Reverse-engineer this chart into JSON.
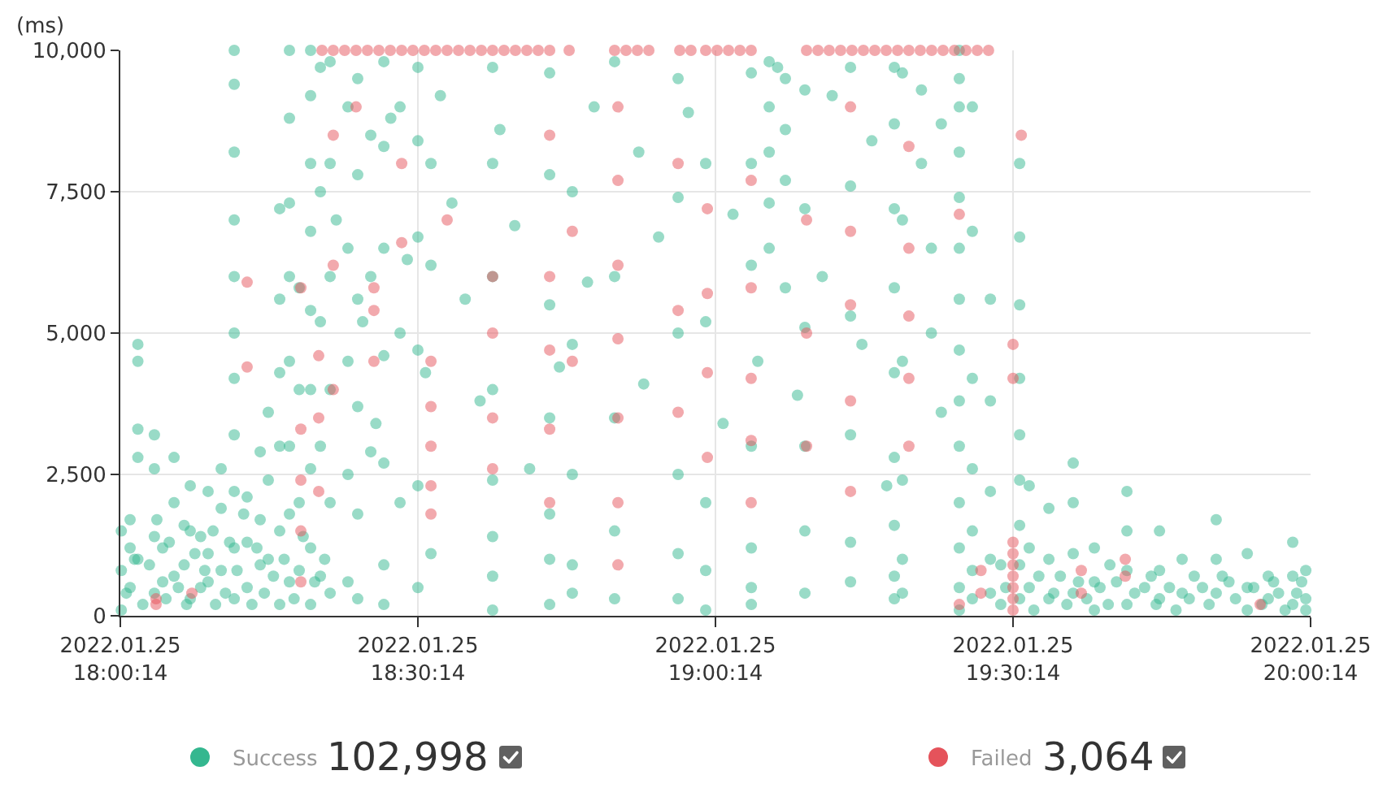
{
  "chart_data": {
    "type": "scatter",
    "ylabel": "(ms)",
    "annotations": [
      "102,998",
      "3,064"
    ],
    "xlim": [
      "2022-01-25T18:00:14",
      "2022-01-25T20:00:14"
    ],
    "xticks": [
      {
        "value": "2022-01-25T18:00:14",
        "label": "2022.01.25\n18:00:14"
      },
      {
        "value": "2022-01-25T18:30:14",
        "label": "2022.01.25\n18:30:14"
      },
      {
        "value": "2022-01-25T19:00:14",
        "label": "2022.01.25\n19:00:14"
      },
      {
        "value": "2022-01-25T19:30:14",
        "label": "2022.01.25\n19:30:14"
      },
      {
        "value": "2022-01-25T20:00:14",
        "label": "2022.01.25\n20:00:14"
      }
    ],
    "ylim": [
      0,
      10000
    ],
    "yticks": [
      0,
      {
        "value": 2500,
        "label": "2,500"
      },
      {
        "value": 5000,
        "label": "5,000"
      },
      {
        "value": 7500,
        "label": "7,500"
      },
      {
        "value": 10000,
        "label": "10,000"
      }
    ],
    "grid": true,
    "legend": "bottom",
    "marker": "circle",
    "series": [
      {
        "name": "Success",
        "color": "#34b78f",
        "x": [
          "2022-01-25T18:00:20",
          "2022-01-25T18:00:20",
          "2022-01-25T18:00:20",
          "2022-01-25T18:01:13",
          "2022-01-25T18:01:13",
          "2022-01-25T18:01:13",
          "2022-01-25T18:02:00",
          "2022-01-25T18:02:00",
          "2022-01-25T18:02:00",
          "2022-01-25T18:02:00",
          "2022-01-25T18:02:00",
          "2022-01-25T18:03:40",
          "2022-01-25T18:03:40",
          "2022-01-25T18:03:40",
          "2022-01-25T18:03:40",
          "2022-01-25T18:04:30",
          "2022-01-25T18:04:30",
          "2022-01-25T18:05:39",
          "2022-01-25T18:05:39",
          "2022-01-25T18:05:39",
          "2022-01-25T18:06:40",
          "2022-01-25T18:06:40",
          "2022-01-25T18:07:17",
          "2022-01-25T18:07:17",
          "2022-01-25T18:07:17",
          "2022-01-25T18:08:20",
          "2022-01-25T18:08:20",
          "2022-01-25T18:09:05",
          "2022-01-25T18:09:05",
          "2022-01-25T18:09:05",
          "2022-01-25T18:10:24",
          "2022-01-25T18:10:24",
          "2022-01-25T18:10:24",
          "2022-01-25T18:11:43",
          "2022-01-25T18:11:43",
          "2022-01-25T18:11:43",
          "2022-01-25T18:11:43",
          "2022-01-25T18:11:43",
          "2022-01-25T18:11:43",
          "2022-01-25T18:11:43",
          "2022-01-25T18:11:43",
          "2022-01-25T18:11:43",
          "2022-01-25T18:11:43",
          "2022-01-25T18:11:43",
          "2022-01-25T18:13:01",
          "2022-01-25T18:13:01",
          "2022-01-25T18:13:01",
          "2022-01-25T18:14:20",
          "2022-01-25T18:14:20",
          "2022-01-25T18:14:20",
          "2022-01-25T18:15:09",
          "2022-01-25T18:15:09",
          "2022-01-25T18:15:09",
          "2022-01-25T18:16:18",
          "2022-01-25T18:16:18",
          "2022-01-25T18:16:18",
          "2022-01-25T18:16:18",
          "2022-01-25T18:16:18",
          "2022-01-25T18:16:18",
          "2022-01-25T18:17:17",
          "2022-01-25T18:17:17",
          "2022-01-25T18:17:17",
          "2022-01-25T18:17:17",
          "2022-01-25T18:17:17",
          "2022-01-25T18:17:17",
          "2022-01-25T18:17:17",
          "2022-01-25T18:17:17",
          "2022-01-25T18:18:16",
          "2022-01-25T18:18:16",
          "2022-01-25T18:18:16",
          "2022-01-25T18:18:16",
          "2022-01-25T18:19:25",
          "2022-01-25T18:19:25",
          "2022-01-25T18:19:25",
          "2022-01-25T18:19:25",
          "2022-01-25T18:19:25",
          "2022-01-25T18:19:25",
          "2022-01-25T18:19:25",
          "2022-01-25T18:19:25",
          "2022-01-25T18:19:25",
          "2022-01-25T18:20:24",
          "2022-01-25T18:20:24",
          "2022-01-25T18:20:24",
          "2022-01-25T18:20:24",
          "2022-01-25T18:20:24",
          "2022-01-25T18:21:23",
          "2022-01-25T18:21:23",
          "2022-01-25T18:21:23",
          "2022-01-25T18:21:23",
          "2022-01-25T18:21:23",
          "2022-01-25T18:21:23",
          "2022-01-25T18:22:00",
          "2022-01-25T18:23:11",
          "2022-01-25T18:23:11",
          "2022-01-25T18:23:11",
          "2022-01-25T18:23:11",
          "2022-01-25T18:23:11",
          "2022-01-25T18:24:10",
          "2022-01-25T18:24:10",
          "2022-01-25T18:24:10",
          "2022-01-25T18:24:10",
          "2022-01-25T18:24:10",
          "2022-01-25T18:24:10",
          "2022-01-25T18:24:40",
          "2022-01-25T18:25:29",
          "2022-01-25T18:25:29",
          "2022-01-25T18:25:29",
          "2022-01-25T18:26:00",
          "2022-01-25T18:26:48",
          "2022-01-25T18:26:48",
          "2022-01-25T18:26:48",
          "2022-01-25T18:26:48",
          "2022-01-25T18:26:48",
          "2022-01-25T18:26:48",
          "2022-01-25T18:26:48",
          "2022-01-25T18:27:30",
          "2022-01-25T18:28:26",
          "2022-01-25T18:28:26",
          "2022-01-25T18:28:26",
          "2022-01-25T18:29:10",
          "2022-01-25T18:30:14",
          "2022-01-25T18:30:14",
          "2022-01-25T18:30:14",
          "2022-01-25T18:30:14",
          "2022-01-25T18:30:14",
          "2022-01-25T18:30:14",
          "2022-01-25T18:31:00",
          "2022-01-25T18:31:33",
          "2022-01-25T18:31:33",
          "2022-01-25T18:31:33",
          "2022-01-25T18:32:30",
          "2022-01-25T18:33:40",
          "2022-01-25T18:35:00",
          "2022-01-25T18:36:30",
          "2022-01-25T18:37:46",
          "2022-01-25T18:37:46",
          "2022-01-25T18:37:46",
          "2022-01-25T18:37:46",
          "2022-01-25T18:37:46",
          "2022-01-25T18:37:46",
          "2022-01-25T18:37:46",
          "2022-01-25T18:37:46",
          "2022-01-25T18:38:30",
          "2022-01-25T18:40:00",
          "2022-01-25T18:41:30",
          "2022-01-25T18:43:31",
          "2022-01-25T18:43:31",
          "2022-01-25T18:43:31",
          "2022-01-25T18:43:31",
          "2022-01-25T18:43:31",
          "2022-01-25T18:43:31",
          "2022-01-25T18:43:31",
          "2022-01-25T18:44:30",
          "2022-01-25T18:45:48",
          "2022-01-25T18:45:48",
          "2022-01-25T18:45:48",
          "2022-01-25T18:45:48",
          "2022-01-25T18:45:48",
          "2022-01-25T18:47:20",
          "2022-01-25T18:48:00",
          "2022-01-25T18:50:04",
          "2022-01-25T18:50:04",
          "2022-01-25T18:50:04",
          "2022-01-25T18:50:04",
          "2022-01-25T18:50:04",
          "2022-01-25T18:52:30",
          "2022-01-25T18:53:00",
          "2022-01-25T18:54:30",
          "2022-01-25T18:56:28",
          "2022-01-25T18:56:28",
          "2022-01-25T18:56:28",
          "2022-01-25T18:56:28",
          "2022-01-25T18:56:28",
          "2022-01-25T18:56:28",
          "2022-01-25T18:57:30",
          "2022-01-25T18:59:15",
          "2022-01-25T18:59:15",
          "2022-01-25T18:59:15",
          "2022-01-25T18:59:15",
          "2022-01-25T18:59:15",
          "2022-01-25T19:01:00",
          "2022-01-25T19:02:00",
          "2022-01-25T19:03:51",
          "2022-01-25T19:03:51",
          "2022-01-25T19:03:51",
          "2022-01-25T19:03:51",
          "2022-01-25T19:03:51",
          "2022-01-25T19:03:51",
          "2022-01-25T19:03:51",
          "2022-01-25T19:04:30",
          "2022-01-25T19:05:39",
          "2022-01-25T19:05:39",
          "2022-01-25T19:05:39",
          "2022-01-25T19:05:39",
          "2022-01-25T19:05:39",
          "2022-01-25T19:06:30",
          "2022-01-25T19:07:17",
          "2022-01-25T19:07:17",
          "2022-01-25T19:07:17",
          "2022-01-25T19:07:17",
          "2022-01-25T19:08:30",
          "2022-01-25T19:09:15",
          "2022-01-25T19:09:15",
          "2022-01-25T19:09:15",
          "2022-01-25T19:09:15",
          "2022-01-25T19:09:15",
          "2022-01-25T19:09:15",
          "2022-01-25T19:11:00",
          "2022-01-25T19:12:00",
          "2022-01-25T19:13:51",
          "2022-01-25T19:13:51",
          "2022-01-25T19:13:51",
          "2022-01-25T19:13:51",
          "2022-01-25T19:13:51",
          "2022-01-25T19:13:51",
          "2022-01-25T19:15:00",
          "2022-01-25T19:16:00",
          "2022-01-25T19:17:30",
          "2022-01-25T19:18:16",
          "2022-01-25T19:18:16",
          "2022-01-25T19:18:16",
          "2022-01-25T19:18:16",
          "2022-01-25T19:18:16",
          "2022-01-25T19:18:16",
          "2022-01-25T19:18:16",
          "2022-01-25T19:18:16",
          "2022-01-25T19:18:16",
          "2022-01-25T19:19:05",
          "2022-01-25T19:19:05",
          "2022-01-25T19:19:05",
          "2022-01-25T19:19:05",
          "2022-01-25T19:19:05",
          "2022-01-25T19:19:05",
          "2022-01-25T19:21:00",
          "2022-01-25T19:21:00",
          "2022-01-25T19:22:00",
          "2022-01-25T19:22:00",
          "2022-01-25T19:23:00",
          "2022-01-25T19:23:00",
          "2022-01-25T19:24:49",
          "2022-01-25T19:24:49",
          "2022-01-25T19:24:49",
          "2022-01-25T19:24:49",
          "2022-01-25T19:24:49",
          "2022-01-25T19:24:49",
          "2022-01-25T19:24:49",
          "2022-01-25T19:24:49",
          "2022-01-25T19:24:49",
          "2022-01-25T19:24:49",
          "2022-01-25T19:24:49",
          "2022-01-25T19:24:49",
          "2022-01-25T19:24:49",
          "2022-01-25T19:24:49",
          "2022-01-25T19:26:08",
          "2022-01-25T19:26:08",
          "2022-01-25T19:26:08",
          "2022-01-25T19:26:08",
          "2022-01-25T19:26:08",
          "2022-01-25T19:26:08",
          "2022-01-25T19:26:08",
          "2022-01-25T19:27:57",
          "2022-01-25T19:27:57",
          "2022-01-25T19:27:57",
          "2022-01-25T19:27:57",
          "2022-01-25T19:27:57",
          "2022-01-25T19:29:00",
          "2022-01-25T19:29:00",
          "2022-01-25T19:30:54",
          "2022-01-25T19:30:54",
          "2022-01-25T19:30:54",
          "2022-01-25T19:30:54",
          "2022-01-25T19:30:54",
          "2022-01-25T19:30:54",
          "2022-01-25T19:30:54",
          "2022-01-25T19:30:54",
          "2022-01-25T19:30:54",
          "2022-01-25T19:31:52",
          "2022-01-25T19:31:52",
          "2022-01-25T19:31:52",
          "2022-01-25T19:33:51",
          "2022-01-25T19:33:51",
          "2022-01-25T19:33:51",
          "2022-01-25T19:35:00",
          "2022-01-25T19:36:18",
          "2022-01-25T19:36:18",
          "2022-01-25T19:36:18",
          "2022-01-25T19:36:18",
          "2022-01-25T19:38:26",
          "2022-01-25T19:38:26",
          "2022-01-25T19:38:26",
          "2022-01-25T19:40:00",
          "2022-01-25T19:41:43",
          "2022-01-25T19:41:43",
          "2022-01-25T19:41:43",
          "2022-01-25T19:41:43",
          "2022-01-25T19:43:30",
          "2022-01-25T19:45:00",
          "2022-01-25T19:45:00",
          "2022-01-25T19:45:00",
          "2022-01-25T19:47:17",
          "2022-01-25T19:47:17",
          "2022-01-25T19:48:30",
          "2022-01-25T19:50:43",
          "2022-01-25T19:50:43",
          "2022-01-25T19:50:43",
          "2022-01-25T19:52:00",
          "2022-01-25T19:53:51",
          "2022-01-25T19:53:51",
          "2022-01-25T19:53:51",
          "2022-01-25T19:55:58",
          "2022-01-25T19:55:58",
          "2022-01-25T19:57:00",
          "2022-01-25T19:58:26",
          "2022-01-25T19:58:26",
          "2022-01-25T19:58:26",
          "2022-01-25T19:59:45",
          "2022-01-25T19:59:45",
          "2022-01-25T19:59:45",
          "2022-01-25T18:00:50",
          "2022-01-25T18:01:40",
          "2022-01-25T18:02:30",
          "2022-01-25T18:03:10",
          "2022-01-25T18:03:55",
          "2022-01-25T18:04:50",
          "2022-01-25T18:05:10",
          "2022-01-25T18:06:05",
          "2022-01-25T18:06:55",
          "2022-01-25T18:07:45",
          "2022-01-25T18:08:45",
          "2022-01-25T18:09:35",
          "2022-01-25T18:09:50",
          "2022-01-25T18:10:50",
          "2022-01-25T18:11:15",
          "2022-01-25T18:12:00",
          "2022-01-25T18:12:40",
          "2022-01-25T18:13:30",
          "2022-01-25T18:14:00",
          "2022-01-25T18:14:45",
          "2022-01-25T18:15:40",
          "2022-01-25T18:16:45",
          "2022-01-25T18:17:45",
          "2022-01-25T18:18:40",
          "2022-01-25T18:19:50",
          "2022-01-25T18:20:50",
          "2022-01-25T19:29:30",
          "2022-01-25T19:32:20",
          "2022-01-25T19:32:50",
          "2022-01-25T19:34:20",
          "2022-01-25T19:35:40",
          "2022-01-25T19:36:50",
          "2022-01-25T19:37:40",
          "2022-01-25T19:39:00",
          "2022-01-25T19:39:50",
          "2022-01-25T19:40:40",
          "2022-01-25T19:42:30",
          "2022-01-25T19:44:10",
          "2022-01-25T19:44:40",
          "2022-01-25T19:46:00",
          "2022-01-25T19:46:40",
          "2022-01-25T19:48:00",
          "2022-01-25T19:49:20",
          "2022-01-25T19:50:00",
          "2022-01-25T19:51:20",
          "2022-01-25T19:52:40",
          "2022-01-25T19:54:30",
          "2022-01-25T19:55:20",
          "2022-01-25T19:56:30",
          "2022-01-25T19:57:40",
          "2022-01-25T19:58:50",
          "2022-01-25T19:59:20"
        ],
        "values": [
          100,
          800,
          1500,
          500,
          1200,
          1700,
          4800,
          4500,
          3300,
          2800,
          1000,
          3200,
          2600,
          1400,
          400,
          1200,
          600,
          2800,
          2000,
          700,
          900,
          1600,
          2300,
          1500,
          300,
          1400,
          500,
          2200,
          1100,
          600,
          2600,
          1900,
          800,
          10000,
          9400,
          8200,
          7000,
          6000,
          5000,
          4200,
          3200,
          2200,
          1200,
          300,
          2100,
          1300,
          500,
          2900,
          1700,
          900,
          3600,
          2400,
          1000,
          7200,
          5600,
          4300,
          3000,
          1500,
          200,
          10000,
          8800,
          7300,
          6000,
          4500,
          3000,
          1800,
          600,
          5800,
          4000,
          2000,
          800,
          10000,
          9200,
          8000,
          6800,
          5400,
          4000,
          2600,
          1200,
          200,
          9700,
          7500,
          5200,
          3000,
          700,
          9800,
          8000,
          6000,
          4000,
          2000,
          400,
          7000,
          9000,
          6500,
          4500,
          2500,
          600,
          9500,
          7800,
          5600,
          3700,
          1800,
          300,
          5200,
          8500,
          6000,
          2900,
          3400,
          9800,
          8300,
          6500,
          4600,
          2700,
          900,
          200,
          8800,
          9000,
          5000,
          2000,
          6300,
          9700,
          8400,
          6700,
          4700,
          2300,
          500,
          4300,
          8000,
          6200,
          1100,
          9200,
          7300,
          5600,
          3800,
          9700,
          8000,
          6000,
          4000,
          2400,
          1400,
          700,
          100,
          8600,
          6900,
          2600,
          9600,
          7800,
          5500,
          3500,
          1800,
          1000,
          200,
          4400,
          7500,
          4800,
          2500,
          900,
          400,
          5900,
          9000,
          9800,
          6000,
          3500,
          1500,
          300,
          8200,
          4100,
          6700,
          9500,
          7400,
          5000,
          2500,
          1100,
          300,
          8900,
          8000,
          5200,
          2000,
          800,
          100,
          3400,
          7100,
          9600,
          8000,
          6200,
          3000,
          1200,
          500,
          200,
          4500,
          9800,
          9000,
          8200,
          7300,
          6500,
          9700,
          9500,
          8600,
          7700,
          5800,
          3900,
          9300,
          7200,
          5100,
          3000,
          1500,
          400,
          6000,
          9200,
          9700,
          7600,
          5300,
          3200,
          1300,
          600,
          4800,
          8400,
          2300,
          9700,
          8700,
          7200,
          5800,
          4300,
          2800,
          1600,
          700,
          300,
          9600,
          7000,
          4500,
          2400,
          1000,
          400,
          9300,
          8000,
          6500,
          5000,
          8700,
          3600,
          10000,
          9500,
          9000,
          8200,
          7400,
          6500,
          5600,
          4700,
          3800,
          3000,
          2000,
          1200,
          500,
          100,
          9000,
          6800,
          4200,
          2600,
          1500,
          800,
          300,
          5600,
          3800,
          2200,
          1000,
          400,
          200,
          900,
          8000,
          6700,
          5500,
          4200,
          3200,
          2400,
          1600,
          900,
          300,
          2300,
          1200,
          500,
          1900,
          1000,
          300,
          700,
          2700,
          2000,
          1100,
          400,
          1200,
          600,
          100,
          900,
          2200,
          1500,
          800,
          200,
          500,
          1500,
          800,
          300,
          1000,
          400,
          700,
          1700,
          1000,
          400,
          600,
          1100,
          500,
          100,
          700,
          300,
          400,
          1300,
          700,
          200,
          800,
          300,
          100,
          400,
          1000,
          200,
          900,
          1700,
          300,
          1300,
          500,
          200,
          1100,
          800,
          1500,
          200,
          400,
          1300,
          800,
          1800,
          200,
          1200,
          400,
          700,
          1000,
          300,
          1400,
          600,
          1000,
          500,
          100,
          700,
          400,
          200,
          600,
          300,
          500,
          200,
          600,
          400,
          700,
          200,
          500,
          100,
          300,
          500,
          200,
          700,
          300,
          500,
          200,
          600,
          100,
          400,
          600
        ]
      },
      {
        "name": "Failed",
        "color": "#e5535b",
        "x": [
          "2022-01-25T18:20:34",
          "2022-01-25T18:21:42",
          "2022-01-25T18:22:51",
          "2022-01-25T18:24:00",
          "2022-01-25T18:25:09",
          "2022-01-25T18:26:18",
          "2022-01-25T18:27:27",
          "2022-01-25T18:28:36",
          "2022-01-25T18:29:44",
          "2022-01-25T18:30:53",
          "2022-01-25T18:32:02",
          "2022-01-25T18:33:11",
          "2022-01-25T18:34:20",
          "2022-01-25T18:35:29",
          "2022-01-25T18:36:38",
          "2022-01-25T18:37:46",
          "2022-01-25T18:38:55",
          "2022-01-25T18:40:04",
          "2022-01-25T18:41:13",
          "2022-01-25T18:42:22",
          "2022-01-25T18:43:31",
          "2022-01-25T18:45:29",
          "2022-01-25T18:50:04",
          "2022-01-25T18:51:13",
          "2022-01-25T18:52:22",
          "2022-01-25T18:53:31",
          "2022-01-25T18:56:38",
          "2022-01-25T18:57:46",
          "2022-01-25T18:59:15",
          "2022-01-25T19:00:24",
          "2022-01-25T19:01:33",
          "2022-01-25T19:02:42",
          "2022-01-25T19:03:50",
          "2022-01-25T19:09:25",
          "2022-01-25T19:10:34",
          "2022-01-25T19:11:42",
          "2022-01-25T19:12:51",
          "2022-01-25T19:14:00",
          "2022-01-25T19:15:09",
          "2022-01-25T19:16:18",
          "2022-01-25T19:17:27",
          "2022-01-25T19:18:36",
          "2022-01-25T19:19:44",
          "2022-01-25T19:20:53",
          "2022-01-25T19:22:02",
          "2022-01-25T19:23:11",
          "2022-01-25T19:24:20",
          "2022-01-25T19:25:29",
          "2022-01-25T19:26:38",
          "2022-01-25T19:27:46",
          "2022-01-25T18:03:50",
          "2022-01-25T18:03:50",
          "2022-01-25T18:07:27",
          "2022-01-25T18:13:01",
          "2022-01-25T18:13:01",
          "2022-01-25T18:18:26",
          "2022-01-25T18:18:26",
          "2022-01-25T18:18:26",
          "2022-01-25T18:18:26",
          "2022-01-25T18:18:26",
          "2022-01-25T18:20:14",
          "2022-01-25T18:20:14",
          "2022-01-25T18:20:14",
          "2022-01-25T18:21:42",
          "2022-01-25T18:21:42",
          "2022-01-25T18:21:42",
          "2022-01-25T18:24:00",
          "2022-01-25T18:25:48",
          "2022-01-25T18:25:48",
          "2022-01-25T18:25:48",
          "2022-01-25T18:28:36",
          "2022-01-25T18:28:36",
          "2022-01-25T18:31:33",
          "2022-01-25T18:31:33",
          "2022-01-25T18:31:33",
          "2022-01-25T18:31:33",
          "2022-01-25T18:31:33",
          "2022-01-25T18:33:11",
          "2022-01-25T18:37:46",
          "2022-01-25T18:37:46",
          "2022-01-25T18:37:46",
          "2022-01-25T18:37:46",
          "2022-01-25T18:43:31",
          "2022-01-25T18:43:31",
          "2022-01-25T18:43:31",
          "2022-01-25T18:43:31",
          "2022-01-25T18:43:31",
          "2022-01-25T18:45:48",
          "2022-01-25T18:45:48",
          "2022-01-25T18:50:24",
          "2022-01-25T18:50:24",
          "2022-01-25T18:50:24",
          "2022-01-25T18:50:24",
          "2022-01-25T18:50:24",
          "2022-01-25T18:50:24",
          "2022-01-25T18:50:24",
          "2022-01-25T18:56:28",
          "2022-01-25T18:56:28",
          "2022-01-25T18:56:28",
          "2022-01-25T18:59:25",
          "2022-01-25T18:59:25",
          "2022-01-25T18:59:25",
          "2022-01-25T18:59:25",
          "2022-01-25T19:03:50",
          "2022-01-25T19:03:50",
          "2022-01-25T19:03:50",
          "2022-01-25T19:03:50",
          "2022-01-25T19:03:50",
          "2022-01-25T19:09:25",
          "2022-01-25T19:09:25",
          "2022-01-25T19:09:25",
          "2022-01-25T19:13:51",
          "2022-01-25T19:13:51",
          "2022-01-25T19:13:51",
          "2022-01-25T19:13:51",
          "2022-01-25T19:13:51",
          "2022-01-25T19:19:44",
          "2022-01-25T19:19:44",
          "2022-01-25T19:19:44",
          "2022-01-25T19:19:44",
          "2022-01-25T19:19:44",
          "2022-01-25T19:24:49",
          "2022-01-25T19:24:49",
          "2022-01-25T19:27:00",
          "2022-01-25T19:27:00",
          "2022-01-25T19:30:14",
          "2022-01-25T19:30:14",
          "2022-01-25T19:30:14",
          "2022-01-25T19:30:14",
          "2022-01-25T19:30:14",
          "2022-01-25T19:30:14",
          "2022-01-25T19:30:14",
          "2022-01-25T19:30:14",
          "2022-01-25T19:30:14",
          "2022-01-25T19:31:04",
          "2022-01-25T19:37:07",
          "2022-01-25T19:37:07",
          "2022-01-25T19:41:33",
          "2022-01-25T19:41:33",
          "2022-01-25T19:55:09"
        ],
        "values": [
          10000,
          10000,
          10000,
          10000,
          10000,
          10000,
          10000,
          10000,
          10000,
          10000,
          10000,
          10000,
          10000,
          10000,
          10000,
          10000,
          10000,
          10000,
          10000,
          10000,
          10000,
          10000,
          10000,
          10000,
          10000,
          10000,
          10000,
          10000,
          10000,
          10000,
          10000,
          10000,
          10000,
          10000,
          10000,
          10000,
          10000,
          10000,
          10000,
          10000,
          10000,
          10000,
          10000,
          10000,
          10000,
          10000,
          10000,
          10000,
          10000,
          10000,
          300,
          200,
          400,
          5900,
          4400,
          5800,
          3300,
          2400,
          1500,
          600,
          4600,
          3500,
          2200,
          8500,
          6200,
          4000,
          9000,
          5800,
          5400,
          4500,
          8000,
          6600,
          4500,
          3700,
          3000,
          2300,
          1800,
          7000,
          6000,
          5000,
          3500,
          2600,
          8500,
          6000,
          4700,
          3300,
          2000,
          6800,
          4500,
          9000,
          7700,
          6200,
          4900,
          3500,
          2000,
          900,
          8000,
          5400,
          3600,
          7200,
          5700,
          4300,
          2800,
          7700,
          5800,
          4200,
          3100,
          2000,
          7000,
          5000,
          3000,
          9000,
          6800,
          5500,
          3800,
          2200,
          8300,
          6500,
          5300,
          4200,
          3000,
          7100,
          200,
          800,
          400,
          100,
          300,
          500,
          700,
          900,
          1100,
          1300,
          4800,
          4200,
          8500,
          800,
          400,
          1000,
          700,
          200
        ]
      }
    ]
  }
}
